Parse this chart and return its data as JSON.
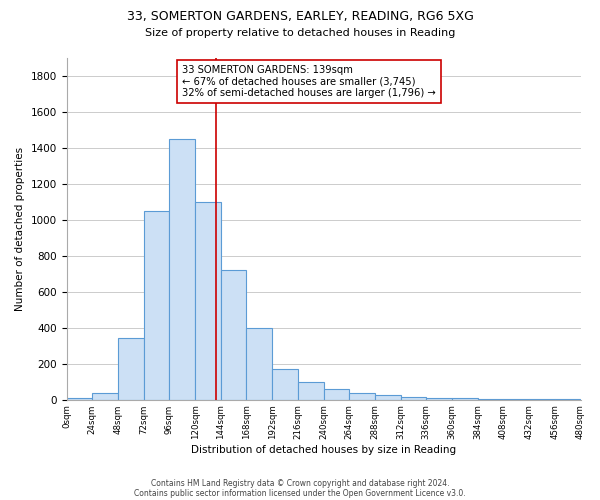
{
  "title_line1": "33, SOMERTON GARDENS, EARLEY, READING, RG6 5XG",
  "title_line2": "Size of property relative to detached houses in Reading",
  "xlabel": "Distribution of detached houses by size in Reading",
  "ylabel": "Number of detached properties",
  "footer_line1": "Contains HM Land Registry data © Crown copyright and database right 2024.",
  "footer_line2": "Contains public sector information licensed under the Open Government Licence v3.0.",
  "bin_labels": [
    "0sqm",
    "24sqm",
    "48sqm",
    "72sqm",
    "96sqm",
    "120sqm",
    "144sqm",
    "168sqm",
    "192sqm",
    "216sqm",
    "240sqm",
    "264sqm",
    "288sqm",
    "312sqm",
    "336sqm",
    "360sqm",
    "384sqm",
    "408sqm",
    "432sqm",
    "456sqm",
    "480sqm"
  ],
  "bar_values": [
    10,
    40,
    340,
    1050,
    1450,
    1100,
    720,
    400,
    170,
    100,
    60,
    40,
    25,
    15,
    10,
    8,
    5,
    4,
    3,
    2
  ],
  "bar_color": "#cce0f5",
  "bar_edgecolor": "#5b9bd5",
  "ylim": [
    0,
    1900
  ],
  "yticks": [
    0,
    200,
    400,
    600,
    800,
    1000,
    1200,
    1400,
    1600,
    1800
  ],
  "property_line_x": 5.83,
  "property_line_color": "#cc0000",
  "annotation_text": "33 SOMERTON GARDENS: 139sqm\n← 67% of detached houses are smaller (3,745)\n32% of semi-detached houses are larger (1,796) →",
  "annotation_box_color": "#ffffff",
  "annotation_box_edgecolor": "#cc0000",
  "background_color": "#ffffff",
  "grid_color": "#cccccc"
}
